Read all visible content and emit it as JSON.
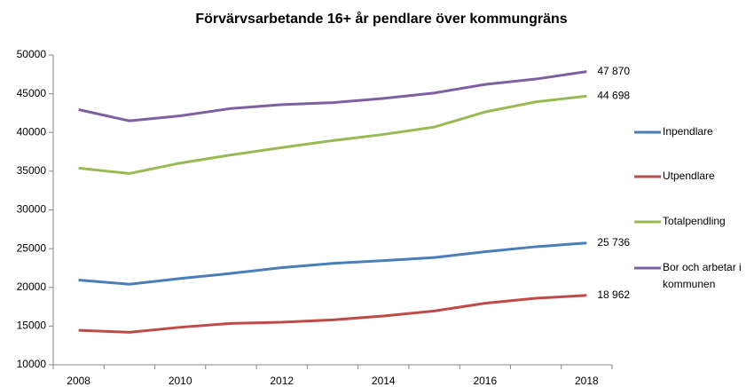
{
  "chart_data": {
    "type": "line",
    "title": "Förvärvsarbetande 16+ år pendlare över kommungräns",
    "categories": [
      "2008",
      null,
      "2010",
      null,
      "2012",
      null,
      "2014",
      null,
      "2016",
      null,
      "2018"
    ],
    "series": [
      {
        "name": "Inpendlare",
        "color": "#4a7ebb",
        "values": [
          20950,
          20400,
          21150,
          21800,
          22550,
          23100,
          23450,
          23850,
          24600,
          25250,
          25736
        ],
        "value_labels": [
          null,
          null,
          null,
          null,
          null,
          null,
          null,
          null,
          null,
          null,
          "25 736"
        ]
      },
      {
        "name": "Utpendlare",
        "color": "#be4b48",
        "values": [
          14450,
          14200,
          14850,
          15350,
          15500,
          15800,
          16300,
          16950,
          17950,
          18600,
          18962
        ],
        "value_labels": [
          null,
          null,
          null,
          null,
          null,
          null,
          null,
          null,
          null,
          null,
          "18 962"
        ]
      },
      {
        "name": "Totalpendling",
        "color": "#98b954",
        "values": [
          35400,
          34700,
          36050,
          37100,
          38050,
          38950,
          39750,
          40700,
          42650,
          43950,
          44698
        ],
        "value_labels": [
          null,
          null,
          null,
          null,
          null,
          null,
          null,
          null,
          null,
          null,
          "44 698"
        ]
      },
      {
        "name": "Bor och arbetar i kommunen",
        "color": "#7d60a0",
        "values": [
          42950,
          41500,
          42150,
          43100,
          43600,
          43850,
          44400,
          45100,
          46200,
          46900,
          47870
        ],
        "value_labels": [
          null,
          null,
          null,
          null,
          null,
          null,
          null,
          null,
          null,
          null,
          "47 870"
        ]
      }
    ],
    "ylim": [
      10000,
      50000
    ],
    "yticks": [
      10000,
      15000,
      20000,
      25000,
      30000,
      35000,
      40000,
      45000,
      50000
    ],
    "legend": "right"
  }
}
